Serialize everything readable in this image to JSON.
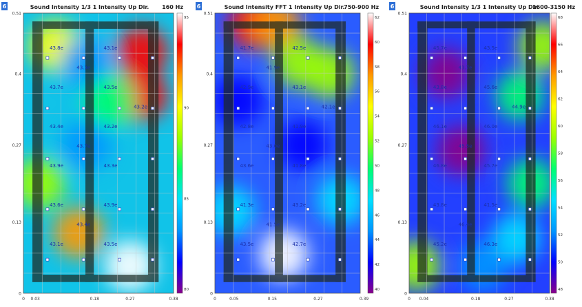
{
  "colors": {
    "scale": [
      "#8a008a",
      "#0000ff",
      "#0096ff",
      "#00e0ff",
      "#00ff70",
      "#9cff00",
      "#ffff00",
      "#ff9900",
      "#ff0000",
      "#ffffff"
    ],
    "accent_blue": "#2d6fd6",
    "grid": "#c8c8c8",
    "frame": "#1e2a24"
  },
  "chart_data": [
    {
      "type": "heatmap",
      "badge": "6",
      "title": "Sound Intensity 1/3 1 Intensity Up Dir.",
      "band": "160 Hz",
      "y_ticks": [
        "0.51",
        "0.4",
        "0.27",
        "0.13",
        "0"
      ],
      "x_ticks": [
        "0",
        "0.03",
        "0.18",
        "0.27",
        "0.38"
      ],
      "scale_ticks": [
        "95",
        "90",
        "85",
        "80"
      ],
      "point_labels": [
        "43.8e",
        "43.1e",
        "43.7e",
        "43.5e",
        "43.4e",
        "43.2e",
        "43.9e",
        "43.3e",
        "43.6e",
        "43.9e",
        "43.1e",
        "43.5e",
        "43.3e",
        "43.7e",
        "43.4e",
        "43.2e"
      ],
      "hotspots": [
        {
          "x": 0.3,
          "y": 0.44,
          "v": 0.9
        },
        {
          "x": 0.3,
          "y": 0.36,
          "v": 0.88
        },
        {
          "x": 0.14,
          "y": 0.11,
          "v": 0.8
        },
        {
          "x": 0.27,
          "y": 0.05,
          "v": 0.96
        },
        {
          "x": 0.08,
          "y": 0.45,
          "v": 0.72
        },
        {
          "x": 0.16,
          "y": 0.42,
          "v": 0.2
        },
        {
          "x": 0.16,
          "y": 0.27,
          "v": 0.18
        },
        {
          "x": 0.04,
          "y": 0.2,
          "v": 0.55
        },
        {
          "x": 0.22,
          "y": 0.35,
          "v": 0.45
        }
      ]
    },
    {
      "type": "heatmap",
      "badge": "6",
      "title": "Sound Intensity FFT 1 Intensity Up Dir.",
      "band": "750-900 Hz",
      "y_ticks": [
        "0.51",
        "0.4",
        "0.27",
        "0.13",
        "0"
      ],
      "x_ticks": [
        "0",
        "0.05",
        "0.15",
        "0.27",
        "0.39"
      ],
      "scale_ticks": [
        "62",
        "60",
        "58",
        "56",
        "54",
        "52",
        "50",
        "48",
        "46",
        "44",
        "42",
        "40"
      ],
      "point_labels": [
        "41.7e",
        "42.5e",
        "42.9e",
        "43.1e",
        "42.8e",
        "41.9e",
        "43.6e",
        "41.8e",
        "41.3e",
        "43.2e",
        "43.5e",
        "42.7e",
        "41.9e",
        "43.0e",
        "41.5e",
        "42.1e"
      ],
      "hotspots": [
        {
          "x": 0.1,
          "y": 0.49,
          "v": 0.92
        },
        {
          "x": 0.16,
          "y": 0.49,
          "v": 0.8
        },
        {
          "x": 0.18,
          "y": 0.07,
          "v": 0.95
        },
        {
          "x": 0.22,
          "y": 0.42,
          "v": 0.6
        },
        {
          "x": 0.06,
          "y": 0.35,
          "v": 0.1
        },
        {
          "x": 0.23,
          "y": 0.27,
          "v": 0.08
        },
        {
          "x": 0.33,
          "y": 0.17,
          "v": 0.35
        },
        {
          "x": 0.04,
          "y": 0.15,
          "v": 0.3
        },
        {
          "x": 0.3,
          "y": 0.4,
          "v": 0.55
        }
      ]
    },
    {
      "type": "heatmap",
      "badge": "6",
      "title": "Sound Intensity 1/3 1 Intensity Up Dir.",
      "band": "1600-3150 Hz",
      "y_ticks": [
        "0.51",
        "0.4",
        "0.27",
        "0.13",
        "0"
      ],
      "x_ticks": [
        "0",
        "0.04",
        "0.18",
        "0.27",
        "0.38"
      ],
      "scale_ticks": [
        "68",
        "66",
        "64",
        "62",
        "60",
        "58",
        "56",
        "54",
        "52",
        "50",
        "48"
      ],
      "point_labels": [
        "45.7e",
        "43.5e",
        "43.8e",
        "45.6e",
        "46.1e",
        "46.0e",
        "46.8e",
        "45.7e",
        "43.8e",
        "41.5e",
        "45.2e",
        "46.3e",
        "43.7e",
        "45.5e",
        "46.4e",
        "44.9e"
      ],
      "hotspots": [
        {
          "x": 0.3,
          "y": 0.36,
          "v": 0.4
        },
        {
          "x": 0.33,
          "y": 0.2,
          "v": 0.45
        },
        {
          "x": 0.29,
          "y": 0.1,
          "v": 0.3
        },
        {
          "x": 0.36,
          "y": 0.45,
          "v": 0.55
        },
        {
          "x": 0.02,
          "y": 0.05,
          "v": 0.5
        },
        {
          "x": 0.14,
          "y": 0.26,
          "v": 0.0
        },
        {
          "x": 0.1,
          "y": 0.4,
          "v": 0.05
        },
        {
          "x": 0.2,
          "y": 0.05,
          "v": 0.2
        }
      ]
    }
  ]
}
